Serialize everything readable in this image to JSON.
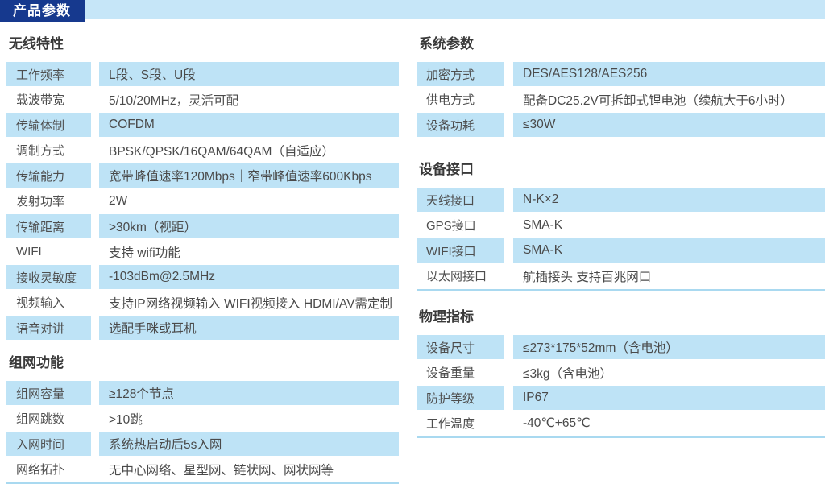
{
  "banner": {
    "title": "产品参数"
  },
  "colors": {
    "navy": "#16398E",
    "row_blue": "#BEE3F6",
    "strip_blue": "#C6E6F8",
    "line_blue": "#A9D9F0"
  },
  "columns": {
    "left": {
      "sections": [
        {
          "title": "无线特性",
          "bottom_line": false,
          "rows": [
            {
              "label": "工作频率",
              "value": "L段、S段、U段"
            },
            {
              "label": "载波带宽",
              "value": "5/10/20MHz，灵活可配"
            },
            {
              "label": "传输体制",
              "value": "COFDM"
            },
            {
              "label": "调制方式",
              "value": "BPSK/QPSK/16QAM/64QAM（自适应）"
            },
            {
              "label": "传输能力",
              "value": "宽带峰值速率120Mbps｜窄带峰值速率600Kbps"
            },
            {
              "label": "发射功率",
              "value": "2W"
            },
            {
              "label": "传输距离",
              "value": ">30km（视距）"
            },
            {
              "label": "WIFI",
              "value": "支持 wifi功能"
            },
            {
              "label": "接收灵敏度",
              "value": "-103dBm@2.5MHz"
            },
            {
              "label": "视频输入",
              "value": "支持IP网络视频输入 WIFI视频接入 HDMI/AV需定制"
            },
            {
              "label": "语音对讲",
              "value": "选配手咪或耳机"
            }
          ]
        },
        {
          "title": "组网功能",
          "bottom_line": true,
          "rows": [
            {
              "label": "组网容量",
              "value": "≥128个节点"
            },
            {
              "label": "组网跳数",
              "value": ">10跳"
            },
            {
              "label": "入网时间",
              "value": "系统热启动后5s入网"
            },
            {
              "label": "网络拓扑",
              "value": "无中心网络、星型网、链状网、网状网等"
            }
          ]
        }
      ]
    },
    "right": {
      "sections": [
        {
          "title": "系统参数",
          "bottom_line": false,
          "rows": [
            {
              "label": "加密方式",
              "value": "DES/AES128/AES256"
            },
            {
              "label": "供电方式",
              "value": "配备DC25.2V可拆卸式锂电池（续航大于6小时）"
            },
            {
              "label": "设备功耗",
              "value": "≤30W"
            }
          ]
        },
        {
          "title": "设备接口",
          "bottom_line": true,
          "rows": [
            {
              "label": "天线接口",
              "value": "N-K×2"
            },
            {
              "label": "GPS接口",
              "value": "SMA-K"
            },
            {
              "label": "WIFI接口",
              "value": "SMA-K"
            },
            {
              "label": "以太网接口",
              "value": "航插接头 支持百兆网口"
            }
          ]
        },
        {
          "title": "物理指标",
          "bottom_line": true,
          "rows": [
            {
              "label": "设备尺寸",
              "value": "≤273*175*52mm（含电池）"
            },
            {
              "label": "设备重量",
              "value": "≤3kg（含电池）"
            },
            {
              "label": "防护等级",
              "value": "IP67"
            },
            {
              "label": "工作温度",
              "value": "-40℃+65℃"
            }
          ]
        }
      ]
    }
  }
}
